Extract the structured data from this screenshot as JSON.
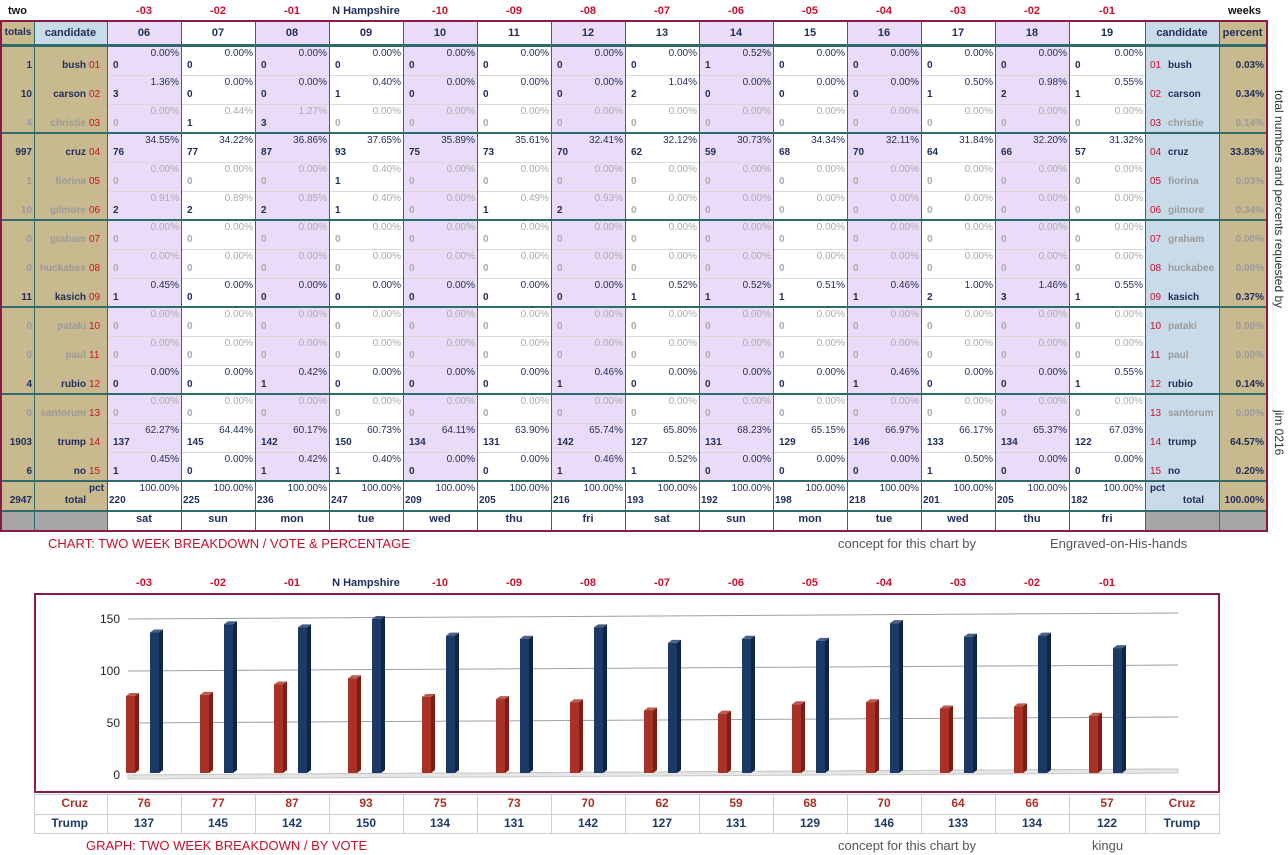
{
  "corner_left": "two",
  "corner_right": "weeks",
  "side_note": "total numbers and percents requested by",
  "side_author": "jim 0216",
  "day_offsets": [
    "-03",
    "-02",
    "-01",
    "N Hampshire",
    "-10",
    "-09",
    "-08",
    "-07",
    "-06",
    "-05",
    "-04",
    "-03",
    "-02",
    "-01"
  ],
  "header": {
    "totals": "totals",
    "candidate": "candidate",
    "candidate_right": "candidate",
    "percent": "percent"
  },
  "col_numbers": [
    "06",
    "07",
    "08",
    "09",
    "10",
    "11",
    "12",
    "13",
    "14",
    "15",
    "16",
    "17",
    "18",
    "19"
  ],
  "weekdays": [
    "sat",
    "sun",
    "mon",
    "tue",
    "wed",
    "thu",
    "fri",
    "sat",
    "sun",
    "mon",
    "tue",
    "wed",
    "thu",
    "fri"
  ],
  "candidates": [
    {
      "name": "bush",
      "code": "01",
      "total": "1",
      "pct": "0.03%",
      "v": [
        "0",
        "0",
        "0",
        "0",
        "0",
        "0",
        "0",
        "0",
        "1",
        "0",
        "0",
        "0",
        "0",
        "0"
      ],
      "p": [
        "0.00%",
        "0.00%",
        "0.00%",
        "0.00%",
        "0.00%",
        "0.00%",
        "0.00%",
        "0.00%",
        "0.52%",
        "0.00%",
        "0.00%",
        "0.00%",
        "0.00%",
        "0.00%"
      ]
    },
    {
      "name": "carson",
      "code": "02",
      "total": "10",
      "pct": "0.34%",
      "v": [
        "3",
        "0",
        "0",
        "1",
        "0",
        "0",
        "0",
        "2",
        "0",
        "0",
        "0",
        "1",
        "2",
        "1"
      ],
      "p": [
        "1.36%",
        "0.00%",
        "0.00%",
        "0.40%",
        "0.00%",
        "0.00%",
        "0.00%",
        "1.04%",
        "0.00%",
        "0.00%",
        "0.00%",
        "0.50%",
        "0.98%",
        "0.55%"
      ]
    },
    {
      "name": "christie",
      "code": "03",
      "total": "4",
      "pct": "0.14%",
      "v": [
        "0",
        "1",
        "3",
        "0",
        "0",
        "0",
        "0",
        "0",
        "0",
        "0",
        "0",
        "0",
        "0",
        "0"
      ],
      "p": [
        "0.00%",
        "0.44%",
        "1.27%",
        "0.00%",
        "0.00%",
        "0.00%",
        "0.00%",
        "0.00%",
        "0.00%",
        "0.00%",
        "0.00%",
        "0.00%",
        "0.00%",
        "0.00%"
      ]
    },
    {
      "name": "cruz",
      "code": "04",
      "total": "997",
      "pct": "33.83%",
      "v": [
        "76",
        "77",
        "87",
        "93",
        "75",
        "73",
        "70",
        "62",
        "59",
        "68",
        "70",
        "64",
        "66",
        "57"
      ],
      "p": [
        "34.55%",
        "34.22%",
        "36.86%",
        "37.65%",
        "35.89%",
        "35.61%",
        "32.41%",
        "32.12%",
        "30.73%",
        "34.34%",
        "32.11%",
        "31.84%",
        "32.20%",
        "31.32%"
      ]
    },
    {
      "name": "fiorina",
      "code": "05",
      "total": "1",
      "pct": "0.03%",
      "v": [
        "0",
        "0",
        "0",
        "1",
        "0",
        "0",
        "0",
        "0",
        "0",
        "0",
        "0",
        "0",
        "0",
        "0"
      ],
      "p": [
        "0.00%",
        "0.00%",
        "0.00%",
        "0.40%",
        "0.00%",
        "0.00%",
        "0.00%",
        "0.00%",
        "0.00%",
        "0.00%",
        "0.00%",
        "0.00%",
        "0.00%",
        "0.00%"
      ]
    },
    {
      "name": "gilmore",
      "code": "06",
      "total": "10",
      "pct": "0.34%",
      "v": [
        "2",
        "2",
        "2",
        "1",
        "0",
        "1",
        "2",
        "0",
        "0",
        "0",
        "0",
        "0",
        "0",
        "0"
      ],
      "p": [
        "0.91%",
        "0.89%",
        "0.85%",
        "0.40%",
        "0.00%",
        "0.49%",
        "0.93%",
        "0.00%",
        "0.00%",
        "0.00%",
        "0.00%",
        "0.00%",
        "0.00%",
        "0.00%"
      ]
    },
    {
      "name": "graham",
      "code": "07",
      "total": "0",
      "pct": "0.00%",
      "v": [
        "0",
        "0",
        "0",
        "0",
        "0",
        "0",
        "0",
        "0",
        "0",
        "0",
        "0",
        "0",
        "0",
        "0"
      ],
      "p": [
        "0.00%",
        "0.00%",
        "0.00%",
        "0.00%",
        "0.00%",
        "0.00%",
        "0.00%",
        "0.00%",
        "0.00%",
        "0.00%",
        "0.00%",
        "0.00%",
        "0.00%",
        "0.00%"
      ]
    },
    {
      "name": "huckabee",
      "code": "08",
      "total": "0",
      "pct": "0.00%",
      "v": [
        "0",
        "0",
        "0",
        "0",
        "0",
        "0",
        "0",
        "0",
        "0",
        "0",
        "0",
        "0",
        "0",
        "0"
      ],
      "p": [
        "0.00%",
        "0.00%",
        "0.00%",
        "0.00%",
        "0.00%",
        "0.00%",
        "0.00%",
        "0.00%",
        "0.00%",
        "0.00%",
        "0.00%",
        "0.00%",
        "0.00%",
        "0.00%"
      ]
    },
    {
      "name": "kasich",
      "code": "09",
      "total": "11",
      "pct": "0.37%",
      "v": [
        "1",
        "0",
        "0",
        "0",
        "0",
        "0",
        "0",
        "1",
        "1",
        "1",
        "1",
        "2",
        "3",
        "1"
      ],
      "p": [
        "0.45%",
        "0.00%",
        "0.00%",
        "0.00%",
        "0.00%",
        "0.00%",
        "0.00%",
        "0.52%",
        "0.52%",
        "0.51%",
        "0.46%",
        "1.00%",
        "1.46%",
        "0.55%"
      ]
    },
    {
      "name": "pataki",
      "code": "10",
      "total": "0",
      "pct": "0.00%",
      "v": [
        "0",
        "0",
        "0",
        "0",
        "0",
        "0",
        "0",
        "0",
        "0",
        "0",
        "0",
        "0",
        "0",
        "0"
      ],
      "p": [
        "0.00%",
        "0.00%",
        "0.00%",
        "0.00%",
        "0.00%",
        "0.00%",
        "0.00%",
        "0.00%",
        "0.00%",
        "0.00%",
        "0.00%",
        "0.00%",
        "0.00%",
        "0.00%"
      ]
    },
    {
      "name": "paul",
      "code": "11",
      "total": "0",
      "pct": "0.00%",
      "v": [
        "0",
        "0",
        "0",
        "0",
        "0",
        "0",
        "0",
        "0",
        "0",
        "0",
        "0",
        "0",
        "0",
        "0"
      ],
      "p": [
        "0.00%",
        "0.00%",
        "0.00%",
        "0.00%",
        "0.00%",
        "0.00%",
        "0.00%",
        "0.00%",
        "0.00%",
        "0.00%",
        "0.00%",
        "0.00%",
        "0.00%",
        "0.00%"
      ]
    },
    {
      "name": "rubio",
      "code": "12",
      "total": "4",
      "pct": "0.14%",
      "v": [
        "0",
        "0",
        "1",
        "0",
        "0",
        "0",
        "1",
        "0",
        "0",
        "0",
        "1",
        "0",
        "0",
        "1"
      ],
      "p": [
        "0.00%",
        "0.00%",
        "0.42%",
        "0.00%",
        "0.00%",
        "0.00%",
        "0.46%",
        "0.00%",
        "0.00%",
        "0.00%",
        "0.46%",
        "0.00%",
        "0.00%",
        "0.55%"
      ]
    },
    {
      "name": "santorum",
      "code": "13",
      "total": "0",
      "pct": "0.00%",
      "v": [
        "0",
        "0",
        "0",
        "0",
        "0",
        "0",
        "0",
        "0",
        "0",
        "0",
        "0",
        "0",
        "0",
        "0"
      ],
      "p": [
        "0.00%",
        "0.00%",
        "0.00%",
        "0.00%",
        "0.00%",
        "0.00%",
        "0.00%",
        "0.00%",
        "0.00%",
        "0.00%",
        "0.00%",
        "0.00%",
        "0.00%",
        "0.00%"
      ]
    },
    {
      "name": "trump",
      "code": "14",
      "total": "1903",
      "pct": "64.57%",
      "v": [
        "137",
        "145",
        "142",
        "150",
        "134",
        "131",
        "142",
        "127",
        "131",
        "129",
        "146",
        "133",
        "134",
        "122"
      ],
      "p": [
        "62.27%",
        "64.44%",
        "60.17%",
        "60.73%",
        "64.11%",
        "63.90%",
        "65.74%",
        "65.80%",
        "68.23%",
        "65.15%",
        "66.97%",
        "66.17%",
        "65.37%",
        "67.03%"
      ]
    },
    {
      "name": "no",
      "code": "15",
      "total": "6",
      "pct": "0.20%",
      "v": [
        "1",
        "0",
        "1",
        "1",
        "0",
        "0",
        "1",
        "1",
        "0",
        "0",
        "0",
        "1",
        "0",
        "0"
      ],
      "p": [
        "0.45%",
        "0.00%",
        "0.42%",
        "0.40%",
        "0.00%",
        "0.00%",
        "0.46%",
        "0.52%",
        "0.00%",
        "0.00%",
        "0.00%",
        "0.50%",
        "0.00%",
        "0.00%"
      ]
    }
  ],
  "totals_row": {
    "grand": "2947",
    "label": "total",
    "pct_label": "pct",
    "pct_label_right": "pct",
    "total_right": "total",
    "percent_right": "100.00%",
    "v": [
      "220",
      "225",
      "236",
      "247",
      "209",
      "205",
      "216",
      "193",
      "192",
      "198",
      "218",
      "201",
      "205",
      "182"
    ],
    "p": "100.00%"
  },
  "table_caption": "CHART: TWO WEEK BREAKDOWN / VOTE & PERCENTAGE",
  "concept_label": "concept for this chart by",
  "table_concept_by": "Engraved-on-His-hands",
  "graph_caption": "GRAPH: TWO WEEK BREAKDOWN / BY VOTE",
  "graph_concept_by": "kingu",
  "colors": {
    "cruz": "#a93226",
    "trump": "#1b3a66",
    "purple_col": "#eadcf8",
    "tan": "#c8b98e",
    "blue_col": "#c9dbe8",
    "accent": "#8a1a46"
  },
  "chart_data": {
    "type": "bar",
    "categories": [
      "-03",
      "-02",
      "-01",
      "N Hampshire",
      "-10",
      "-09",
      "-08",
      "-07",
      "-06",
      "-05",
      "-04",
      "-03",
      "-02",
      "-01"
    ],
    "series": [
      {
        "name": "Cruz",
        "values": [
          76,
          77,
          87,
          93,
          75,
          73,
          70,
          62,
          59,
          68,
          70,
          64,
          66,
          57
        ]
      },
      {
        "name": "Trump",
        "values": [
          137,
          145,
          142,
          150,
          134,
          131,
          142,
          127,
          131,
          129,
          146,
          133,
          134,
          122
        ]
      }
    ],
    "yticks": [
      0,
      50,
      100,
      150
    ],
    "ylim": [
      0,
      150
    ],
    "grid": true
  }
}
